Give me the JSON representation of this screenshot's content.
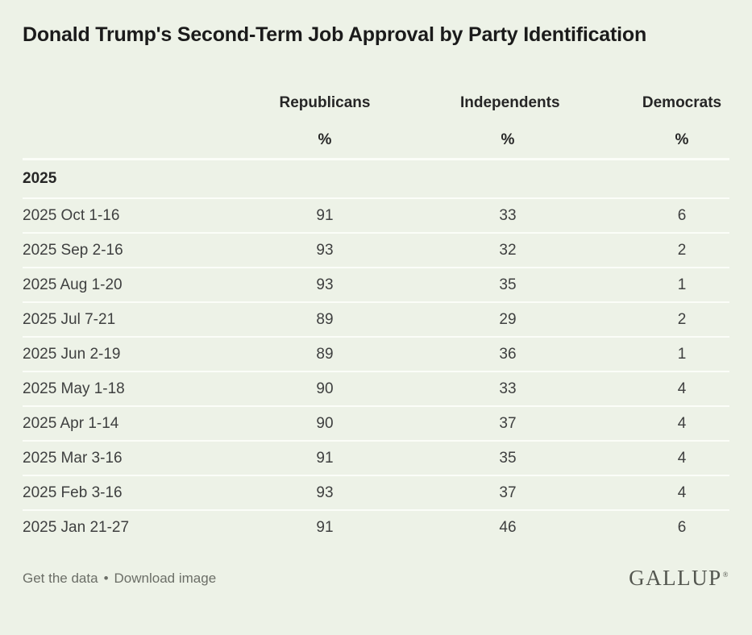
{
  "title": "Donald Trump's Second-Term Job Approval by Party Identification",
  "colors": {
    "background": "#edf2e7",
    "separator": "#fbfdf8",
    "title_text": "#1b1b1b",
    "header_text": "#262626",
    "row_text": "#3f4040",
    "footer_text": "#6b6e67",
    "logo_text": "#53564f"
  },
  "table": {
    "columns": [
      {
        "label": "Republicans",
        "unit": "%"
      },
      {
        "label": "Independents",
        "unit": "%"
      },
      {
        "label": "Democrats",
        "unit": "%"
      }
    ],
    "section": "2025",
    "rows": [
      {
        "date": "2025 Oct 1-16",
        "rep": "91",
        "ind": "33",
        "dem": "6"
      },
      {
        "date": "2025 Sep 2-16",
        "rep": "93",
        "ind": "32",
        "dem": "2"
      },
      {
        "date": "2025 Aug 1-20",
        "rep": "93",
        "ind": "35",
        "dem": "1"
      },
      {
        "date": "2025 Jul 7-21",
        "rep": "89",
        "ind": "29",
        "dem": "2"
      },
      {
        "date": "2025 Jun 2-19",
        "rep": "89",
        "ind": "36",
        "dem": "1"
      },
      {
        "date": "2025 May 1-18",
        "rep": "90",
        "ind": "33",
        "dem": "4"
      },
      {
        "date": "2025 Apr 1-14",
        "rep": "90",
        "ind": "37",
        "dem": "4"
      },
      {
        "date": "2025 Mar 3-16",
        "rep": "91",
        "ind": "35",
        "dem": "4"
      },
      {
        "date": "2025 Feb 3-16",
        "rep": "93",
        "ind": "37",
        "dem": "4"
      },
      {
        "date": "2025 Jan 21-27",
        "rep": "91",
        "ind": "46",
        "dem": "6"
      }
    ]
  },
  "footer": {
    "link_get_data": "Get the data",
    "bullet": "•",
    "link_download": "Download image",
    "logo": "GALLUP",
    "trademark": "®"
  },
  "chart_data": {
    "type": "table",
    "title": "Donald Trump's Second-Term Job Approval by Party Identification",
    "section": "2025",
    "unit": "%",
    "categories": [
      "2025 Oct 1-16",
      "2025 Sep 2-16",
      "2025 Aug 1-20",
      "2025 Jul 7-21",
      "2025 Jun 2-19",
      "2025 May 1-18",
      "2025 Apr 1-14",
      "2025 Mar 3-16",
      "2025 Feb 3-16",
      "2025 Jan 21-27"
    ],
    "series": [
      {
        "name": "Republicans",
        "values": [
          91,
          93,
          93,
          89,
          89,
          90,
          90,
          91,
          93,
          91
        ]
      },
      {
        "name": "Independents",
        "values": [
          33,
          32,
          35,
          29,
          36,
          33,
          37,
          35,
          37,
          46
        ]
      },
      {
        "name": "Democrats",
        "values": [
          6,
          2,
          1,
          2,
          1,
          4,
          4,
          4,
          4,
          6
        ]
      }
    ],
    "source": "GALLUP"
  }
}
